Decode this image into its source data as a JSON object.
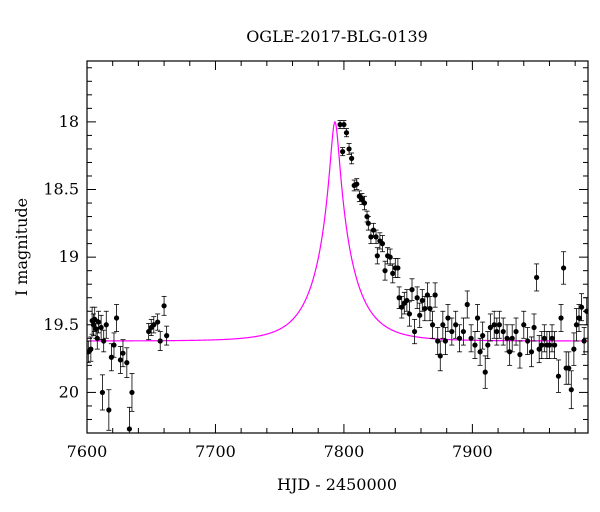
{
  "chart_data": {
    "type": "scatter",
    "title": "OGLE-2017-BLG-0139",
    "xlabel": "HJD - 2450000",
    "ylabel": "I magnitude",
    "xlim": [
      7600,
      7990
    ],
    "ylim": [
      20.3,
      17.55
    ],
    "y_inverted": true,
    "x_ticks": [
      "7600",
      "7700",
      "7800",
      "7900"
    ],
    "y_ticks": [
      "18",
      "18.5",
      "19",
      "19.5",
      "20"
    ],
    "grid": false,
    "model_color": "#ff00ff",
    "point_color": "#000000",
    "model": {
      "t0": 7793,
      "u0": 0.115,
      "tE": 28,
      "I_baseline": 19.62
    },
    "series": [
      {
        "points": [
          [
            7601,
            19.7,
            0.08
          ],
          [
            7603,
            19.68,
            0.09
          ],
          [
            7604,
            19.47,
            0.1
          ],
          [
            7605,
            19.5,
            0.08
          ],
          [
            7606,
            19.46,
            0.09
          ],
          [
            7607,
            19.53,
            0.07
          ],
          [
            7608,
            19.6,
            0.08
          ],
          [
            7609,
            19.48,
            0.08
          ],
          [
            7611,
            19.52,
            0.09
          ],
          [
            7612,
            20.0,
            0.13
          ],
          [
            7613,
            19.62,
            0.08
          ],
          [
            7615,
            19.5,
            0.1
          ],
          [
            7617,
            20.13,
            0.15
          ],
          [
            7619,
            19.74,
            0.1
          ],
          [
            7621,
            19.65,
            0.09
          ],
          [
            7623,
            19.45,
            0.1
          ],
          [
            7626,
            19.76,
            0.1
          ],
          [
            7628,
            19.71,
            0.1
          ],
          [
            7631,
            19.78,
            0.11
          ],
          [
            7633,
            20.27,
            0.16
          ],
          [
            7635,
            20.0,
            0.14
          ],
          [
            7648,
            19.55,
            0.06
          ],
          [
            7650,
            19.52,
            0.06
          ],
          [
            7652,
            19.5,
            0.06
          ],
          [
            7655,
            19.48,
            0.06
          ],
          [
            7657,
            19.62,
            0.07
          ],
          [
            7660,
            19.36,
            0.07
          ],
          [
            7662,
            19.58,
            0.07
          ],
          [
            7797,
            18.02,
            0.03
          ],
          [
            7799,
            18.22,
            0.03
          ],
          [
            7800,
            18.02,
            0.03
          ],
          [
            7802,
            18.08,
            0.03
          ],
          [
            7804,
            18.2,
            0.04
          ],
          [
            7806,
            18.27,
            0.04
          ],
          [
            7808,
            18.47,
            0.04
          ],
          [
            7810,
            18.46,
            0.04
          ],
          [
            7812,
            18.55,
            0.04
          ],
          [
            7814,
            18.57,
            0.04
          ],
          [
            7816,
            18.6,
            0.05
          ],
          [
            7818,
            18.7,
            0.04
          ],
          [
            7819,
            18.75,
            0.05
          ],
          [
            7821,
            18.85,
            0.05
          ],
          [
            7823,
            18.8,
            0.05
          ],
          [
            7825,
            18.85,
            0.05
          ],
          [
            7826,
            18.99,
            0.06
          ],
          [
            7828,
            18.88,
            0.06
          ],
          [
            7830,
            18.9,
            0.06
          ],
          [
            7832,
            19.1,
            0.07
          ],
          [
            7834,
            18.99,
            0.06
          ],
          [
            7836,
            19.0,
            0.06
          ],
          [
            7838,
            19.12,
            0.07
          ],
          [
            7840,
            19.08,
            0.07
          ],
          [
            7842,
            19.08,
            0.07
          ],
          [
            7843,
            19.3,
            0.08
          ],
          [
            7845,
            19.37,
            0.08
          ],
          [
            7847,
            19.34,
            0.08
          ],
          [
            7849,
            19.32,
            0.08
          ],
          [
            7851,
            19.42,
            0.09
          ],
          [
            7853,
            19.24,
            0.08
          ],
          [
            7855,
            19.55,
            0.09
          ],
          [
            7857,
            19.3,
            0.08
          ],
          [
            7859,
            19.43,
            0.09
          ],
          [
            7861,
            19.32,
            0.08
          ],
          [
            7863,
            19.38,
            0.09
          ],
          [
            7865,
            19.28,
            0.09
          ],
          [
            7867,
            19.38,
            0.09
          ],
          [
            7869,
            19.5,
            0.1
          ],
          [
            7871,
            19.28,
            0.09
          ],
          [
            7873,
            19.62,
            0.1
          ],
          [
            7875,
            19.73,
            0.11
          ],
          [
            7877,
            19.5,
            0.1
          ],
          [
            7879,
            19.62,
            0.1
          ],
          [
            7881,
            19.45,
            0.1
          ],
          [
            7884,
            19.55,
            0.1
          ],
          [
            7887,
            19.5,
            0.1
          ],
          [
            7890,
            19.6,
            0.1
          ],
          [
            7893,
            19.55,
            0.1
          ],
          [
            7896,
            19.35,
            0.1
          ],
          [
            7899,
            19.6,
            0.1
          ],
          [
            7902,
            19.65,
            0.1
          ],
          [
            7904,
            19.45,
            0.1
          ],
          [
            7906,
            19.7,
            0.1
          ],
          [
            7908,
            19.58,
            0.1
          ],
          [
            7910,
            19.85,
            0.12
          ],
          [
            7912,
            19.65,
            0.1
          ],
          [
            7914,
            19.52,
            0.1
          ],
          [
            7917,
            19.5,
            0.1
          ],
          [
            7919,
            19.55,
            0.1
          ],
          [
            7921,
            19.5,
            0.1
          ],
          [
            7924,
            19.55,
            0.1
          ],
          [
            7927,
            19.6,
            0.1
          ],
          [
            7929,
            19.7,
            0.1
          ],
          [
            7931,
            19.6,
            0.1
          ],
          [
            7934,
            19.55,
            0.1
          ],
          [
            7937,
            19.72,
            0.1
          ],
          [
            7940,
            19.5,
            0.1
          ],
          [
            7943,
            19.62,
            0.1
          ],
          [
            7946,
            19.7,
            0.11
          ],
          [
            7948,
            19.52,
            0.1
          ],
          [
            7950,
            19.15,
            0.1
          ],
          [
            7952,
            19.68,
            0.1
          ],
          [
            7954,
            19.65,
            0.1
          ],
          [
            7956,
            19.6,
            0.1
          ],
          [
            7958,
            19.65,
            0.1
          ],
          [
            7960,
            19.65,
            0.1
          ],
          [
            7962,
            19.6,
            0.1
          ],
          [
            7964,
            19.65,
            0.1
          ],
          [
            7967,
            19.88,
            0.12
          ],
          [
            7969,
            19.45,
            0.1
          ],
          [
            7971,
            19.08,
            0.12
          ],
          [
            7973,
            19.82,
            0.12
          ],
          [
            7975,
            19.82,
            0.12
          ],
          [
            7977,
            19.98,
            0.14
          ],
          [
            7979,
            19.68,
            0.12
          ],
          [
            7981,
            19.5,
            0.12
          ],
          [
            7983,
            19.45,
            0.1
          ],
          [
            7985,
            19.37,
            0.1
          ],
          [
            7987,
            19.62,
            0.1
          ],
          [
            7989,
            19.4,
            0.1
          ]
        ]
      }
    ]
  }
}
